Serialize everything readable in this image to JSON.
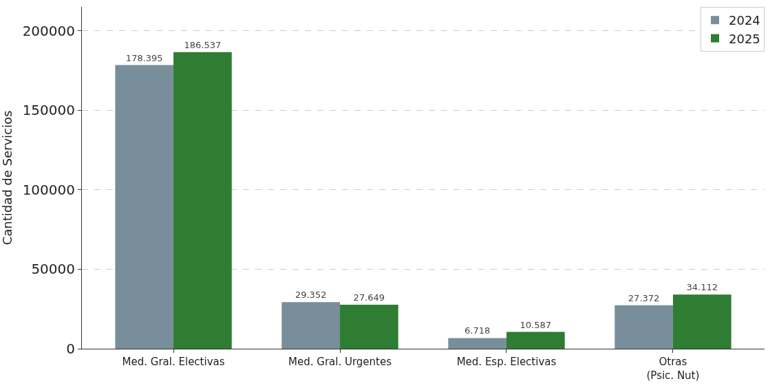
{
  "chart_data": {
    "type": "bar",
    "ylabel": "Cantidad de Servicios",
    "categories": [
      "Med. Gral. Electivas",
      "Med. Gral. Urgentes",
      "Med. Esp. Electivas",
      "Otras\n(Psic. Nut)"
    ],
    "series": [
      {
        "name": "2024",
        "color": "#788f9b",
        "values": [
          178395,
          29352,
          6718,
          27372
        ],
        "value_labels": [
          "178.395",
          "29.352",
          "6.718",
          "27.372"
        ]
      },
      {
        "name": "2025",
        "color": "#2e7d32",
        "values": [
          186537,
          27649,
          10587,
          34112
        ],
        "value_labels": [
          "186.537",
          "27.649",
          "10.587",
          "34.112"
        ]
      }
    ],
    "ylim": [
      0,
      215000
    ],
    "yticks": [
      0,
      50000,
      100000,
      150000,
      200000
    ],
    "grid": "y",
    "legend": "top right"
  }
}
